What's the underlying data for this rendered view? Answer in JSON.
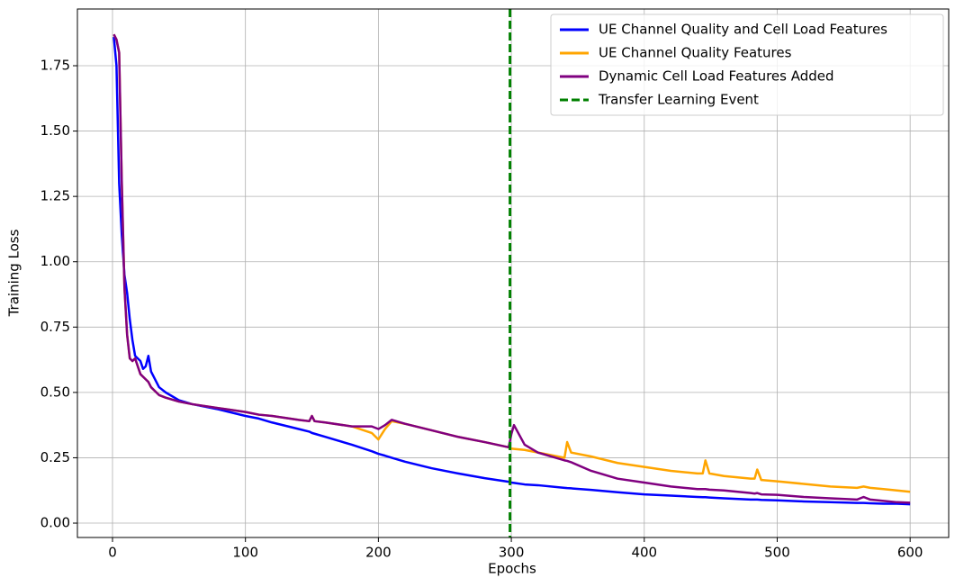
{
  "chart_data": {
    "type": "line",
    "xlabel": "Epochs",
    "ylabel": "Training Loss",
    "x": [
      1,
      3,
      5,
      7,
      9,
      11,
      13,
      15,
      17,
      19,
      21,
      23,
      25,
      27,
      29,
      31,
      35,
      40,
      50,
      60,
      80,
      100,
      110,
      120,
      140,
      148,
      150,
      152,
      160,
      180,
      195,
      200,
      205,
      210,
      220,
      240,
      260,
      280,
      298,
      300,
      302,
      310,
      320,
      340,
      342,
      345,
      360,
      380,
      400,
      420,
      440,
      444,
      446,
      449,
      460,
      480,
      483,
      485,
      488,
      500,
      520,
      540,
      560,
      565,
      570,
      580,
      590,
      600
    ],
    "series": [
      {
        "name": "UE Channel Quality and Cell Load Features",
        "color": "#0000ff",
        "values": [
          1.86,
          1.75,
          1.3,
          1.1,
          0.95,
          0.88,
          0.78,
          0.7,
          0.64,
          0.63,
          0.62,
          0.59,
          0.6,
          0.64,
          0.58,
          0.56,
          0.52,
          0.5,
          0.47,
          0.455,
          0.435,
          0.41,
          0.4,
          0.385,
          0.36,
          0.35,
          0.345,
          0.342,
          0.33,
          0.3,
          0.275,
          0.265,
          0.258,
          0.25,
          0.235,
          0.21,
          0.19,
          0.172,
          0.158,
          0.155,
          0.154,
          0.148,
          0.145,
          0.135,
          0.134,
          0.133,
          0.127,
          0.118,
          0.11,
          0.105,
          0.1,
          0.099,
          0.099,
          0.098,
          0.095,
          0.09,
          0.09,
          0.09,
          0.089,
          0.087,
          0.083,
          0.08,
          0.077,
          0.077,
          0.076,
          0.074,
          0.074,
          0.072
        ]
      },
      {
        "name": "UE Channel Quality Features",
        "color": "#ffa500",
        "values": [
          1.87,
          1.85,
          1.8,
          1.3,
          0.9,
          0.72,
          0.63,
          0.62,
          0.63,
          0.6,
          0.57,
          0.56,
          0.55,
          0.54,
          0.52,
          0.51,
          0.49,
          0.48,
          0.465,
          0.455,
          0.44,
          0.425,
          0.415,
          0.41,
          0.395,
          0.39,
          0.41,
          0.39,
          0.385,
          0.37,
          0.345,
          0.32,
          0.36,
          0.39,
          0.38,
          0.355,
          0.33,
          0.31,
          0.29,
          0.285,
          0.284,
          0.28,
          0.27,
          0.25,
          0.31,
          0.27,
          0.255,
          0.23,
          0.215,
          0.2,
          0.19,
          0.19,
          0.24,
          0.19,
          0.18,
          0.17,
          0.17,
          0.205,
          0.165,
          0.16,
          0.15,
          0.14,
          0.135,
          0.14,
          0.135,
          0.13,
          0.125,
          0.12
        ]
      },
      {
        "name": "Dynamic Cell Load Features Added",
        "color": "#800080",
        "values": [
          1.87,
          1.85,
          1.8,
          1.3,
          0.9,
          0.72,
          0.63,
          0.62,
          0.63,
          0.6,
          0.57,
          0.56,
          0.55,
          0.54,
          0.52,
          0.51,
          0.49,
          0.48,
          0.465,
          0.455,
          0.44,
          0.425,
          0.415,
          0.41,
          0.395,
          0.39,
          0.41,
          0.39,
          0.385,
          0.37,
          0.37,
          0.36,
          0.375,
          0.395,
          0.38,
          0.355,
          0.33,
          0.31,
          0.29,
          0.34,
          0.375,
          0.3,
          0.27,
          0.24,
          0.238,
          0.233,
          0.2,
          0.17,
          0.155,
          0.14,
          0.13,
          0.13,
          0.13,
          0.128,
          0.125,
          0.115,
          0.113,
          0.115,
          0.11,
          0.108,
          0.1,
          0.095,
          0.09,
          0.1,
          0.09,
          0.085,
          0.08,
          0.078
        ]
      }
    ],
    "vlines": [
      {
        "name": "Transfer Learning Event",
        "x": 299,
        "color": "#008000",
        "style": "dashed"
      }
    ],
    "xlim": [
      -26.4,
      629
    ],
    "ylim": [
      -0.055,
      1.967
    ],
    "xticks": [
      0,
      100,
      200,
      300,
      400,
      500,
      600
    ],
    "yticks": [
      {
        "value": 0,
        "label": "0.00"
      },
      0.25,
      {
        "value": 0.5,
        "label": "0.50"
      },
      0.75,
      {
        "value": 1,
        "label": "1.00"
      },
      1.25,
      {
        "value": 1.5,
        "label": "1.50"
      },
      1.75
    ],
    "grid": true,
    "legend": "upper right"
  }
}
